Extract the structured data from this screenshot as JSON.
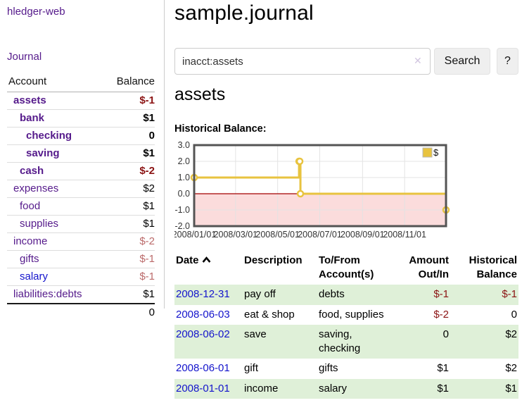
{
  "colors": {
    "purple": "#551a8b",
    "link_blue": "#1414cc",
    "neg_strong": "#8b1313",
    "neg_soft": "#bb6a6a",
    "row_green": "#dff0d8",
    "series_gold": "#e8c33f",
    "negative_fill": "#fbdcdc",
    "zero_line": "#a40000",
    "grid": "#e3e3e3",
    "plot_border": "#545454"
  },
  "sidebar": {
    "brand": "hledger-web",
    "journal_link": "Journal",
    "accounts": {
      "col_account": "Account",
      "col_balance": "Balance",
      "rows": [
        {
          "name": "assets",
          "depth": 1,
          "bold": true,
          "link": "purple",
          "balance": "$-1",
          "bal_class": "neg-strong"
        },
        {
          "name": "bank",
          "depth": 2,
          "bold": true,
          "link": "purple",
          "balance": "$1",
          "bal_class": ""
        },
        {
          "name": "checking",
          "depth": 3,
          "bold": true,
          "link": "purple",
          "balance": "0",
          "bal_class": ""
        },
        {
          "name": "saving",
          "depth": 3,
          "bold": true,
          "link": "purple",
          "balance": "$1",
          "bal_class": ""
        },
        {
          "name": "cash",
          "depth": 2,
          "bold": true,
          "link": "purple",
          "balance": "$-2",
          "bal_class": "neg-strong"
        },
        {
          "name": "expenses",
          "depth": 1,
          "bold": false,
          "link": "purple",
          "balance": "$2",
          "bal_class": ""
        },
        {
          "name": "food",
          "depth": 2,
          "bold": false,
          "link": "purple",
          "balance": "$1",
          "bal_class": ""
        },
        {
          "name": "supplies",
          "depth": 2,
          "bold": false,
          "link": "purple",
          "balance": "$1",
          "bal_class": ""
        },
        {
          "name": "income",
          "depth": 1,
          "bold": false,
          "link": "purple",
          "balance": "$-2",
          "bal_class": "neg-soft"
        },
        {
          "name": "gifts",
          "depth": 2,
          "bold": false,
          "link": "purple",
          "balance": "$-1",
          "bal_class": "neg-soft"
        },
        {
          "name": "salary",
          "depth": 2,
          "bold": false,
          "link": "blue",
          "balance": "$-1",
          "bal_class": "neg-soft"
        },
        {
          "name": "liabilities:debts",
          "depth": 1,
          "bold": false,
          "link": "purple",
          "balance": "$1",
          "bal_class": ""
        }
      ],
      "total": "0"
    }
  },
  "main": {
    "title": "sample.journal",
    "search": {
      "value": "inacct:assets",
      "clear_icon": "✕",
      "search_label": "Search",
      "help_label": "?"
    },
    "account_title": "assets",
    "chart_heading": "Historical Balance:",
    "register": {
      "headers": [
        {
          "label": "Date",
          "sort_icon": "chevron-up",
          "align": "left"
        },
        {
          "label": "Description",
          "align": "left"
        },
        {
          "label": "To/From Account(s)",
          "align": "left"
        },
        {
          "label": "Amount Out/In",
          "align": "right"
        },
        {
          "label": "Historical Balance",
          "align": "right"
        }
      ],
      "rows": [
        {
          "date": "2008-12-31",
          "description": "pay off",
          "accounts": "debts",
          "amount": "$-1",
          "amount_neg": true,
          "balance": "$-1",
          "balance_neg": true,
          "shaded": true
        },
        {
          "date": "2008-06-03",
          "description": "eat & shop",
          "accounts": "food, supplies",
          "amount": "$-2",
          "amount_neg": true,
          "balance": "0",
          "balance_neg": false,
          "shaded": false
        },
        {
          "date": "2008-06-02",
          "description": "save",
          "accounts": "saving, checking",
          "amount": "0",
          "amount_neg": false,
          "balance": "$2",
          "balance_neg": false,
          "shaded": true
        },
        {
          "date": "2008-06-01",
          "description": "gift",
          "accounts": "gifts",
          "amount": "$1",
          "amount_neg": false,
          "balance": "$2",
          "balance_neg": false,
          "shaded": false
        },
        {
          "date": "2008-01-01",
          "description": "income",
          "accounts": "salary",
          "amount": "$1",
          "amount_neg": false,
          "balance": "$1",
          "balance_neg": false,
          "shaded": true
        }
      ]
    }
  },
  "chart_data": {
    "type": "line",
    "step": true,
    "title": "Historical Balance",
    "series": [
      {
        "name": "$",
        "color": "#e8c33f",
        "points": [
          [
            "2008-01-01",
            1
          ],
          [
            "2008-06-01",
            2
          ],
          [
            "2008-06-02",
            2
          ],
          [
            "2008-06-03",
            0
          ],
          [
            "2008-12-31",
            -1
          ]
        ]
      }
    ],
    "xlim": [
      "2008-01-01",
      "2008-12-31"
    ],
    "ylim": [
      -2,
      3
    ],
    "y_ticks": [
      3.0,
      2.0,
      1.0,
      0.0,
      -1.0,
      -2.0
    ],
    "x_ticks": [
      {
        "date": "2008-01-01",
        "label": "2008/01/01"
      },
      {
        "date": "2008-03-01",
        "label": "2008/03/01"
      },
      {
        "date": "2008-05-01",
        "label": "2008/05/01"
      },
      {
        "date": "2008-07-01",
        "label": "2008/07/01"
      },
      {
        "date": "2008-09-01",
        "label": "2008/09/01"
      },
      {
        "date": "2008-11-01",
        "label": "2008/11/01"
      }
    ],
    "legend": {
      "position": "top-right",
      "label": "$"
    },
    "grid": true,
    "negative_fill": "#fbdcdc",
    "zero_line_color": "#a40000"
  }
}
